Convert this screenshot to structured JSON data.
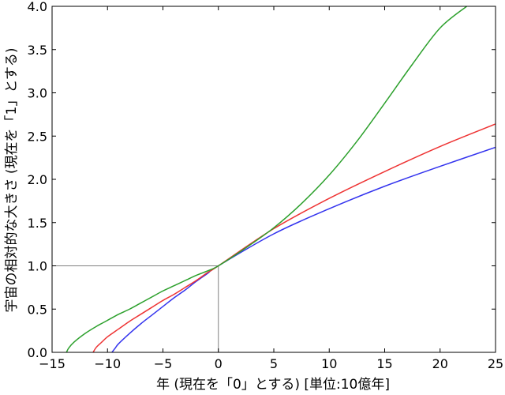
{
  "chart_data": {
    "type": "line",
    "title": "",
    "xlabel": "年 (現在を「0」とする) [単位:10億年]",
    "ylabel": "宇宙の相対的な大きさ (現在を「1」とする)",
    "xlim": [
      -15,
      25
    ],
    "ylim": [
      0.0,
      4.0
    ],
    "x_ticks": [
      "−15",
      "−10",
      "−5",
      "0",
      "5",
      "10",
      "15",
      "20",
      "25"
    ],
    "y_ticks": [
      "0.0",
      "0.5",
      "1.0",
      "1.5",
      "2.0",
      "2.5",
      "3.0",
      "3.5",
      "4.0"
    ],
    "grid": false,
    "legend": null,
    "reference_lines": {
      "x": 0,
      "y": 1.0,
      "color": "#808080"
    },
    "series": [
      {
        "color": "#3333ee",
        "x": [
          -9.6,
          -9.3,
          -9.0,
          -8.0,
          -7.0,
          -6.0,
          -5.0,
          -4.0,
          -3.0,
          -2.0,
          -1.0,
          0,
          5,
          10,
          15,
          20,
          25
        ],
        "y": [
          0.0,
          0.05,
          0.1,
          0.22,
          0.33,
          0.43,
          0.53,
          0.63,
          0.72,
          0.82,
          0.91,
          1.0,
          1.37,
          1.66,
          1.92,
          2.15,
          2.37
        ]
      },
      {
        "color": "#ee3333",
        "x": [
          -11.3,
          -11.0,
          -10.5,
          -10.0,
          -9.0,
          -8.0,
          -7.0,
          -6.0,
          -5.0,
          -4.0,
          -3.0,
          -2.0,
          -1.0,
          0,
          5,
          10,
          15,
          20,
          25
        ],
        "y": [
          0.0,
          0.06,
          0.12,
          0.18,
          0.27,
          0.36,
          0.44,
          0.52,
          0.6,
          0.67,
          0.75,
          0.83,
          0.92,
          1.0,
          1.43,
          1.78,
          2.09,
          2.38,
          2.64
        ]
      },
      {
        "color": "#2ca02c",
        "x": [
          -13.7,
          -13.5,
          -13.0,
          -12.0,
          -11.0,
          -10.0,
          -9.0,
          -8.0,
          -7.0,
          -6.0,
          -5.0,
          -4.0,
          -3.0,
          -2.0,
          -1.0,
          0,
          2.5,
          5,
          7.5,
          10,
          12.5,
          15,
          17.5,
          20,
          22.4
        ],
        "y": [
          0.0,
          0.05,
          0.12,
          0.22,
          0.3,
          0.37,
          0.44,
          0.5,
          0.57,
          0.64,
          0.71,
          0.77,
          0.83,
          0.89,
          0.94,
          1.0,
          1.21,
          1.44,
          1.72,
          2.05,
          2.44,
          2.88,
          3.33,
          3.75,
          4.0
        ]
      }
    ]
  }
}
